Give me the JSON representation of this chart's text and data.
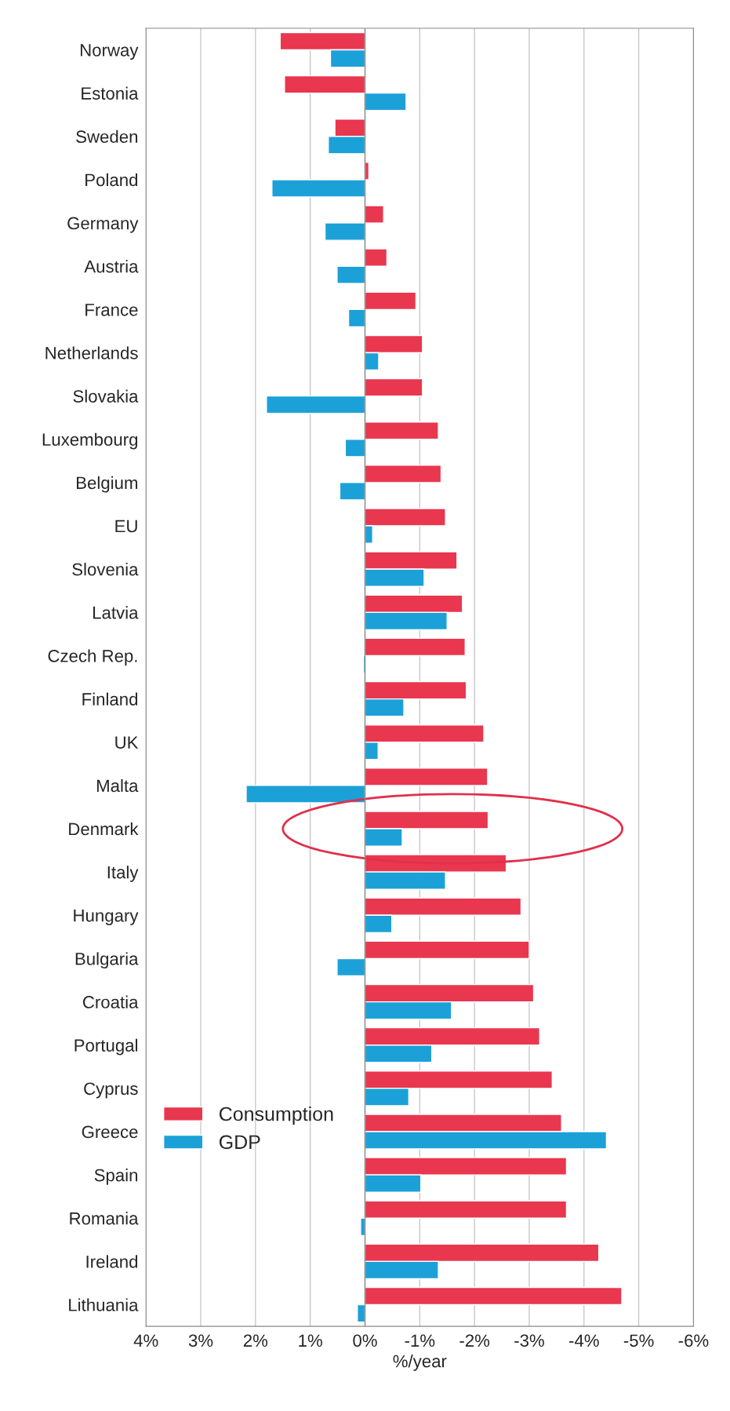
{
  "chart_data": {
    "type": "bar",
    "orientation": "horizontal",
    "xlabel": "%/year",
    "categories": [
      "Norway",
      "Estonia",
      "Sweden",
      "Poland",
      "Germany",
      "Austria",
      "France",
      "Netherlands",
      "Slovakia",
      "Luxembourg",
      "Belgium",
      "EU",
      "Slovenia",
      "Latvia",
      "Czech Rep.",
      "Finland",
      "UK",
      "Malta",
      "Denmark",
      "Italy",
      "Hungary",
      "Bulgaria",
      "Croatia",
      "Portugal",
      "Cyprus",
      "Greece",
      "Spain",
      "Romania",
      "Ireland",
      "Lithuania"
    ],
    "series": [
      {
        "name": "Consumption",
        "color": "#e8374f",
        "values": [
          1.55,
          1.47,
          0.55,
          -0.07,
          -0.34,
          -0.4,
          -0.93,
          -1.05,
          -1.05,
          -1.34,
          -1.39,
          -1.47,
          -1.68,
          -1.78,
          -1.83,
          -1.85,
          -2.17,
          -2.24,
          -2.25,
          -2.58,
          -2.85,
          -3.0,
          -3.08,
          -3.19,
          -3.42,
          -3.59,
          -3.68,
          -3.68,
          -4.27,
          -4.69
        ]
      },
      {
        "name": "GDP",
        "color": "#1ba1d8",
        "values": [
          0.63,
          -0.75,
          0.67,
          1.7,
          0.73,
          0.51,
          0.3,
          -0.25,
          1.8,
          0.36,
          0.46,
          -0.14,
          -1.08,
          -1.5,
          0.03,
          -0.71,
          -0.24,
          2.17,
          -0.68,
          -1.47,
          -0.49,
          0.51,
          -1.58,
          -1.22,
          -0.8,
          -4.41,
          -1.02,
          0.08,
          -1.34,
          0.14
        ]
      }
    ],
    "xlim": [
      4,
      -6
    ],
    "xticks": [
      {
        "value": 4,
        "label": "4%"
      },
      {
        "value": 3,
        "label": "3%"
      },
      {
        "value": 2,
        "label": "2%"
      },
      {
        "value": 1,
        "label": "1%"
      },
      {
        "value": 0,
        "label": "0%"
      },
      {
        "value": -1,
        "label": "-1%"
      },
      {
        "value": -2,
        "label": "-2%"
      },
      {
        "value": -3,
        "label": "-3%"
      },
      {
        "value": -4,
        "label": "-4%"
      },
      {
        "value": -5,
        "label": "-5%"
      },
      {
        "value": -6,
        "label": "-6%"
      }
    ],
    "grid": "x",
    "legend": "lower left"
  }
}
